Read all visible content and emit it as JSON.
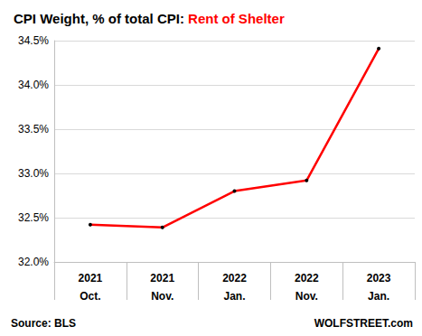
{
  "chart_data": {
    "type": "line",
    "title": "CPI Weight, % of total CPI: Rent of Shelter",
    "categories": [
      "2021\nOct.",
      "2021\nNov.",
      "2022\nJan.",
      "2022\nNov.",
      "2023\nJan."
    ],
    "series": [
      {
        "name": "Rent of Shelter",
        "color": "#ff0000",
        "values": [
          32.42,
          32.39,
          32.8,
          32.92,
          34.41
        ],
        "marker": "circle"
      }
    ],
    "ylim": [
      32.0,
      34.5
    ],
    "yticks": [
      {
        "value": 32.0,
        "label": "32.0%"
      },
      {
        "value": 32.5,
        "label": "32.5%"
      },
      {
        "value": 33.0,
        "label": "33.0%"
      },
      {
        "value": 33.5,
        "label": "33.5%"
      },
      {
        "value": 34.0,
        "label": "34.0%"
      },
      {
        "value": 34.5,
        "label": "34.5%"
      }
    ],
    "grid": true,
    "annotations": [
      "Source: BLS",
      "WOLFSTREET.com"
    ]
  }
}
